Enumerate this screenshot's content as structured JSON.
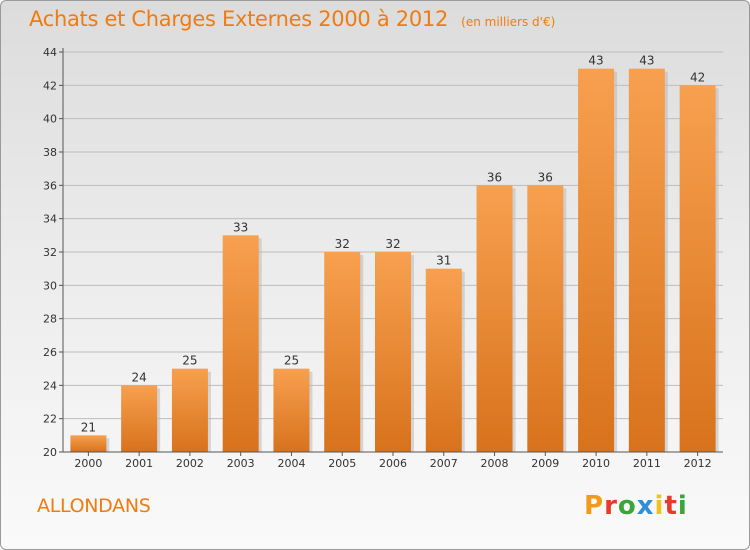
{
  "header": {
    "title": "Achats et Charges Externes 2000 à 2012",
    "unit": "(en milliers d'€)"
  },
  "footer": {
    "commune": "ALLONDANS",
    "logo_letters": [
      "P",
      "r",
      "o",
      "x",
      "i",
      "t",
      "i"
    ],
    "logo_colors": [
      "#f29a1a",
      "#e83a2a",
      "#3aa538",
      "#2f8fd8",
      "#f2c21a",
      "#e83a2a",
      "#3aa538"
    ]
  },
  "colors": {
    "bar_top": "#f7a04f",
    "bar_bottom": "#d8721c",
    "axis": "#555555",
    "grid": "#bdbdbd",
    "text": "#f07b10"
  },
  "chart_data": {
    "type": "bar",
    "title": "Achats et Charges Externes 2000 à 2012",
    "subtitle": "(en milliers d'€)",
    "categories": [
      "2000",
      "2001",
      "2002",
      "2003",
      "2004",
      "2005",
      "2006",
      "2007",
      "2008",
      "2009",
      "2010",
      "2011",
      "2012"
    ],
    "values": [
      21,
      24,
      25,
      33,
      25,
      32,
      32,
      31,
      36,
      36,
      43,
      43,
      42
    ],
    "ylim": [
      20,
      44
    ],
    "yticks": [
      20,
      22,
      24,
      26,
      28,
      30,
      32,
      34,
      36,
      38,
      40,
      42,
      44
    ],
    "grid": true,
    "data_labels": true
  }
}
